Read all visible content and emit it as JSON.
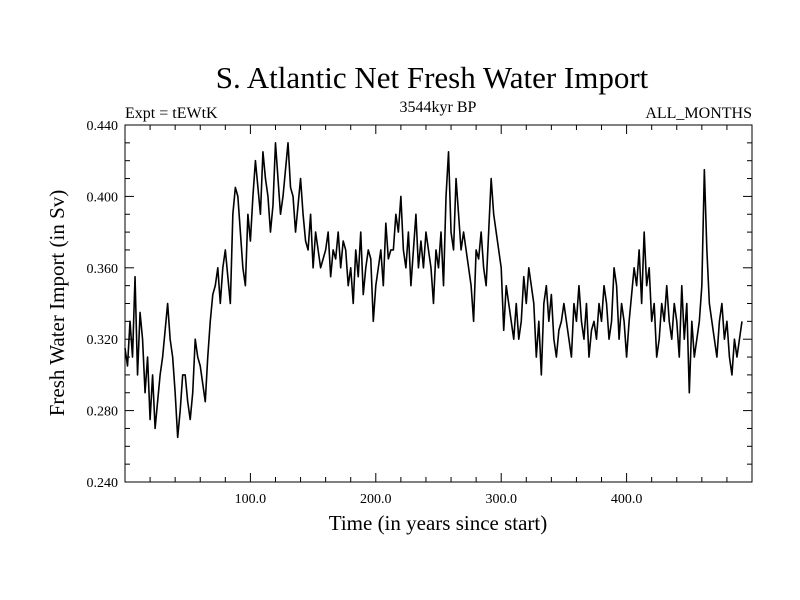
{
  "chart_data": {
    "type": "line",
    "title": "S. Atlantic Net Fresh Water Import",
    "left_label": "Expt = tEWtK",
    "center_label": "3544kyr BP",
    "right_label": "ALL_MONTHS",
    "xlabel": "Time (in years since start)",
    "ylabel": "Fresh Water Import (in Sv)",
    "xlim": [
      0,
      500
    ],
    "ylim": [
      0.24,
      0.44
    ],
    "x_ticks": [
      100,
      200,
      300,
      400
    ],
    "x_tick_labels": [
      "100.0",
      "200.0",
      "300.0",
      "400.0"
    ],
    "y_ticks": [
      0.24,
      0.28,
      0.32,
      0.36,
      0.4,
      0.44
    ],
    "y_tick_labels": [
      "0.240",
      "0.280",
      "0.320",
      "0.360",
      "0.400",
      "0.440"
    ],
    "series": [
      {
        "name": "Net Fresh Water Import",
        "x_start": 0,
        "x_step": 2,
        "values": [
          0.315,
          0.305,
          0.33,
          0.31,
          0.355,
          0.3,
          0.335,
          0.32,
          0.29,
          0.31,
          0.275,
          0.3,
          0.27,
          0.285,
          0.3,
          0.31,
          0.325,
          0.34,
          0.32,
          0.31,
          0.29,
          0.265,
          0.28,
          0.3,
          0.3,
          0.285,
          0.275,
          0.29,
          0.32,
          0.31,
          0.305,
          0.295,
          0.285,
          0.31,
          0.33,
          0.345,
          0.35,
          0.36,
          0.34,
          0.36,
          0.37,
          0.355,
          0.34,
          0.39,
          0.405,
          0.4,
          0.38,
          0.36,
          0.35,
          0.39,
          0.375,
          0.4,
          0.42,
          0.405,
          0.39,
          0.425,
          0.41,
          0.4,
          0.38,
          0.395,
          0.43,
          0.41,
          0.39,
          0.4,
          0.415,
          0.43,
          0.405,
          0.4,
          0.38,
          0.395,
          0.41,
          0.39,
          0.375,
          0.37,
          0.39,
          0.36,
          0.38,
          0.37,
          0.36,
          0.365,
          0.37,
          0.38,
          0.355,
          0.37,
          0.365,
          0.38,
          0.36,
          0.375,
          0.37,
          0.35,
          0.36,
          0.34,
          0.37,
          0.355,
          0.38,
          0.345,
          0.36,
          0.37,
          0.365,
          0.33,
          0.35,
          0.36,
          0.37,
          0.35,
          0.385,
          0.365,
          0.37,
          0.37,
          0.39,
          0.38,
          0.4,
          0.37,
          0.36,
          0.38,
          0.35,
          0.37,
          0.39,
          0.36,
          0.375,
          0.36,
          0.38,
          0.37,
          0.36,
          0.34,
          0.37,
          0.36,
          0.38,
          0.35,
          0.4,
          0.425,
          0.38,
          0.37,
          0.41,
          0.39,
          0.37,
          0.38,
          0.37,
          0.36,
          0.35,
          0.33,
          0.37,
          0.365,
          0.38,
          0.36,
          0.35,
          0.38,
          0.41,
          0.39,
          0.38,
          0.37,
          0.36,
          0.325,
          0.35,
          0.34,
          0.33,
          0.32,
          0.34,
          0.32,
          0.33,
          0.355,
          0.34,
          0.36,
          0.35,
          0.34,
          0.31,
          0.33,
          0.3,
          0.34,
          0.35,
          0.33,
          0.345,
          0.32,
          0.31,
          0.325,
          0.33,
          0.34,
          0.33,
          0.32,
          0.31,
          0.34,
          0.33,
          0.35,
          0.33,
          0.32,
          0.34,
          0.31,
          0.325,
          0.33,
          0.32,
          0.34,
          0.33,
          0.35,
          0.34,
          0.32,
          0.33,
          0.36,
          0.35,
          0.32,
          0.34,
          0.33,
          0.31,
          0.33,
          0.345,
          0.36,
          0.35,
          0.37,
          0.34,
          0.38,
          0.35,
          0.36,
          0.33,
          0.34,
          0.31,
          0.32,
          0.34,
          0.33,
          0.35,
          0.33,
          0.32,
          0.34,
          0.33,
          0.31,
          0.35,
          0.32,
          0.34,
          0.29,
          0.33,
          0.31,
          0.32,
          0.33,
          0.35,
          0.415,
          0.37,
          0.34,
          0.33,
          0.32,
          0.31,
          0.33,
          0.34,
          0.32,
          0.33,
          0.31,
          0.3,
          0.32,
          0.31,
          0.32,
          0.33
        ]
      }
    ]
  }
}
